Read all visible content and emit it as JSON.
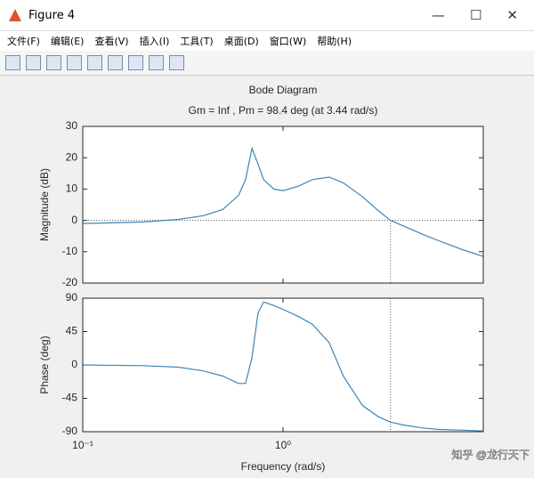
{
  "window": {
    "title": "Figure 4",
    "menu": [
      "文件(F)",
      "编辑(E)",
      "查看(V)",
      "插入(I)",
      "工具(T)",
      "桌面(D)",
      "窗口(W)",
      "帮助(H)"
    ],
    "watermark": "知乎 @龙行天下"
  },
  "chart_data": [
    {
      "type": "line",
      "title": "Bode Diagram",
      "subtitle": "Gm = Inf , Pm = 98.4 deg (at 3.44 rad/s)",
      "ylabel": "Magnitude (dB)",
      "log_x": true,
      "grid": false,
      "x": [
        0.1,
        0.2,
        0.3,
        0.4,
        0.5,
        0.6,
        0.65,
        0.7,
        0.75,
        0.8,
        0.9,
        1.0,
        1.2,
        1.4,
        1.7,
        2.0,
        2.5,
        3.0,
        3.44,
        4,
        5,
        6,
        8,
        10
      ],
      "series": [
        {
          "name": "Magnitude",
          "color": "#3a87b8",
          "values": [
            -1.0,
            -0.5,
            0.3,
            1.5,
            3.5,
            8,
            13,
            23,
            18,
            13,
            10,
            9.5,
            11,
            13,
            13.8,
            12,
            7.5,
            3,
            0,
            -1.8,
            -4.5,
            -6.5,
            -9.5,
            -11.5
          ]
        }
      ],
      "xlim": [
        0.1,
        10
      ],
      "ylim": [
        -20,
        30
      ],
      "yticks": [
        -20,
        -10,
        0,
        10,
        20,
        30
      ],
      "crossover_frequency": 3.44,
      "crossover_level": 0
    },
    {
      "type": "line",
      "ylabel": "Phase (deg)",
      "xlabel": "Frequency  (rad/s)",
      "log_x": true,
      "grid": false,
      "x": [
        0.1,
        0.2,
        0.3,
        0.4,
        0.5,
        0.6,
        0.65,
        0.7,
        0.75,
        0.8,
        0.9,
        1.0,
        1.2,
        1.4,
        1.7,
        2.0,
        2.5,
        3.0,
        3.44,
        4,
        5,
        6,
        8,
        10
      ],
      "series": [
        {
          "name": "Phase",
          "color": "#3a87b8",
          "values": [
            0,
            -1,
            -3,
            -8,
            -15,
            -25,
            -25,
            10,
            70,
            85,
            80,
            75,
            65,
            55,
            30,
            -15,
            -55,
            -70,
            -77,
            -81,
            -85,
            -87,
            -88,
            -89
          ]
        }
      ],
      "xlim": [
        0.1,
        10
      ],
      "ylim": [
        -90,
        90
      ],
      "yticks": [
        -90,
        -45,
        0,
        45,
        90
      ],
      "xticks": [
        {
          "value": 0.1,
          "label": "10⁻¹"
        },
        {
          "value": 1,
          "label": "10⁰"
        }
      ]
    }
  ]
}
